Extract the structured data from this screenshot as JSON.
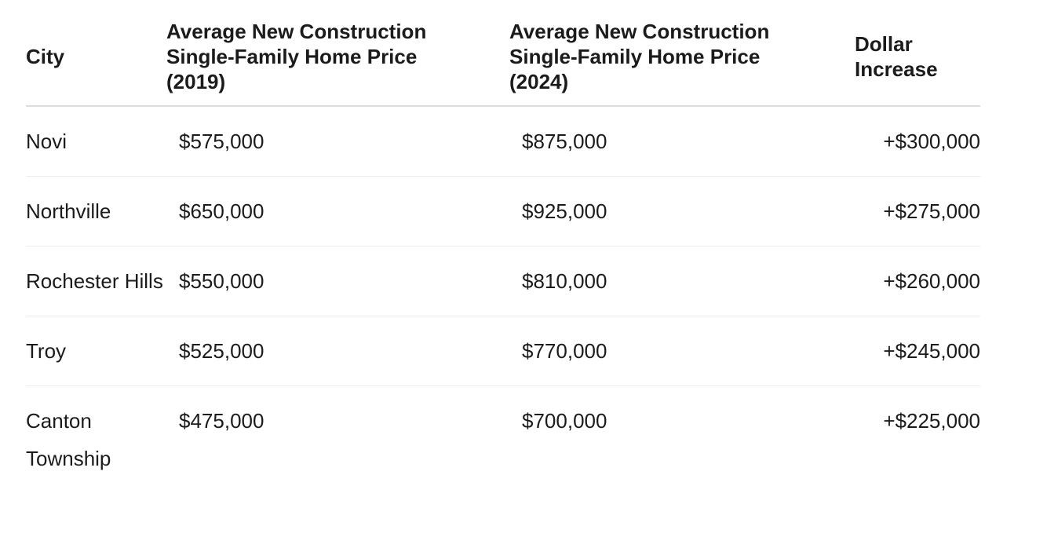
{
  "table": {
    "headers": [
      "City",
      "Average New Construction Single-Family Home Price (2019)",
      "Average New Construction Single-Family Home Price (2024)",
      "Dollar Increase"
    ],
    "rows": [
      {
        "city": "Novi",
        "price_2019": "$575,000",
        "price_2024": "$875,000",
        "increase": "+$300,000"
      },
      {
        "city": "Northville",
        "price_2019": "$650,000",
        "price_2024": "$925,000",
        "increase": "+$275,000"
      },
      {
        "city": "Rochester Hills",
        "price_2019": "$550,000",
        "price_2024": "$810,000",
        "increase": "+$260,000"
      },
      {
        "city": "Troy",
        "price_2019": "$525,000",
        "price_2024": "$770,000",
        "increase": "+$245,000"
      },
      {
        "city": "Canton Township",
        "price_2019": "$475,000",
        "price_2024": "$700,000",
        "increase": "+$225,000"
      }
    ]
  }
}
